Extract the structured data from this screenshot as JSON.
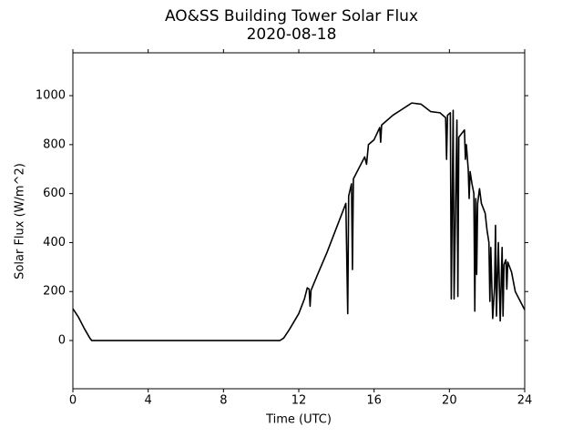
{
  "chart_data": {
    "type": "line",
    "title": "AO&SS Building Tower Solar Flux",
    "subtitle": "2020-08-18",
    "x_label": "Time (UTC)",
    "y_label": "Solar Flux (W/m^2)",
    "xlim": [
      0,
      24
    ],
    "xticks": [
      0,
      4,
      8,
      12,
      16,
      20,
      24
    ],
    "ylim": [
      -197,
      1175
    ],
    "yticks": [
      0,
      200,
      400,
      600,
      800,
      1000
    ],
    "grid": false,
    "series": [
      {
        "name": "Solar Flux",
        "color": "#000000",
        "x": [
          0,
          0.3,
          0.6,
          0.9,
          1.0,
          11.0,
          11.2,
          11.5,
          12,
          12.3,
          12.45,
          12.55,
          12.6,
          12.65,
          13,
          13.5,
          14,
          14.5,
          14.6,
          14.65,
          14.8,
          14.85,
          14.9,
          15.5,
          15.6,
          15.7,
          16,
          16.3,
          16.35,
          16.4,
          17,
          17.5,
          17.8,
          18,
          18.5,
          19,
          19.5,
          19.8,
          19.85,
          19.9,
          20.05,
          20.1,
          20.2,
          20.25,
          20.4,
          20.45,
          20.5,
          20.8,
          20.85,
          20.9,
          21,
          21.05,
          21.1,
          21.2,
          21.3,
          21.35,
          21.4,
          21.45,
          21.5,
          21.6,
          21.7,
          21.9,
          22,
          22.1,
          22.15,
          22.2,
          22.3,
          22.4,
          22.45,
          22.5,
          22.6,
          22.7,
          22.8,
          22.85,
          22.9,
          23,
          23.05,
          23.1,
          23.3,
          23.5,
          24
        ],
        "values": [
          130,
          95,
          50,
          10,
          0,
          0,
          10,
          45,
          110,
          170,
          215,
          210,
          140,
          205,
          270,
          360,
          460,
          560,
          110,
          590,
          640,
          290,
          660,
          750,
          720,
          800,
          820,
          870,
          810,
          880,
          920,
          945,
          960,
          970,
          965,
          935,
          930,
          910,
          740,
          920,
          930,
          170,
          940,
          170,
          900,
          180,
          830,
          860,
          740,
          800,
          700,
          580,
          690,
          640,
          600,
          120,
          580,
          270,
          560,
          620,
          560,
          520,
          450,
          400,
          160,
          380,
          90,
          220,
          470,
          100,
          400,
          80,
          380,
          100,
          310,
          330,
          210,
          320,
          280,
          200,
          125
        ]
      }
    ]
  }
}
